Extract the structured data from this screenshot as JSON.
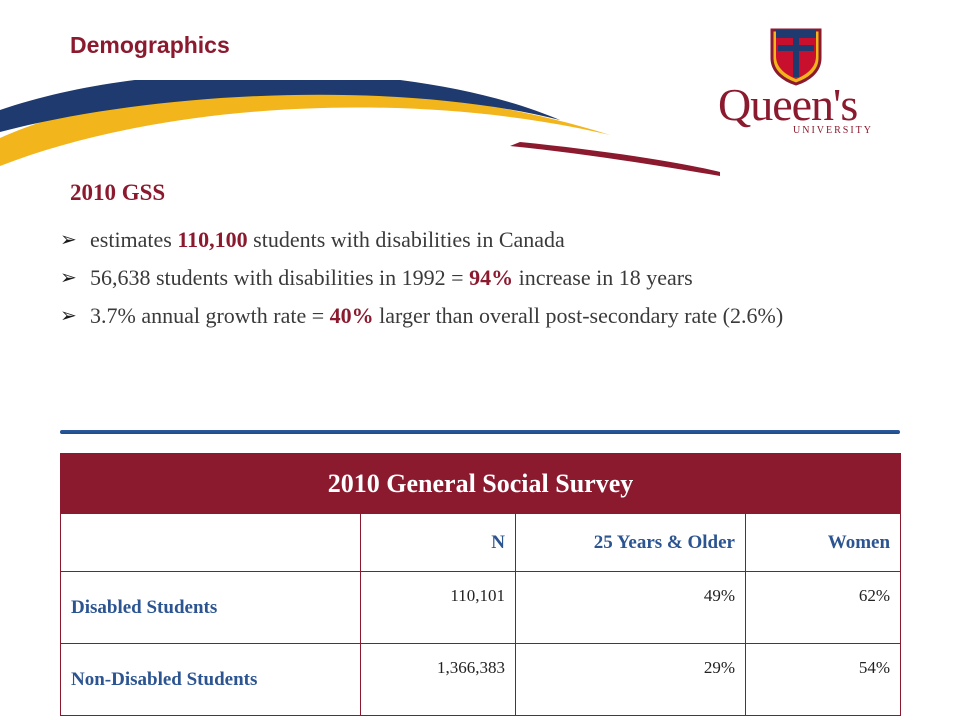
{
  "header": {
    "title": "Demographics",
    "logo": {
      "name": "Queen's",
      "subtitle": "UNIVERSITY"
    }
  },
  "section": {
    "heading": "2010 GSS",
    "bullets": [
      {
        "parts": [
          "estimates ",
          "110,100",
          " students with disabilities in Canada"
        ]
      },
      {
        "parts": [
          "56,638 students with disabilities in 1992 = ",
          "94%",
          " increase in 18 years"
        ]
      },
      {
        "parts": [
          "3.7% annual growth rate = ",
          "40%",
          " larger than overall post-secondary rate (2.6%)"
        ]
      }
    ]
  },
  "table": {
    "title": "2010 General Social Survey",
    "columns": [
      "",
      "N",
      "25 Years & Older",
      "Women"
    ],
    "rows": [
      {
        "label": "Disabled Students",
        "n": "110,101",
        "older": "49%",
        "women": "62%"
      },
      {
        "label": "Non-Disabled Students",
        "n": "1,366,383",
        "older": "29%",
        "women": "54%"
      }
    ]
  },
  "colors": {
    "accent": "#8b1a2f",
    "blue": "#2b5491",
    "gold": "#f2b51b"
  }
}
